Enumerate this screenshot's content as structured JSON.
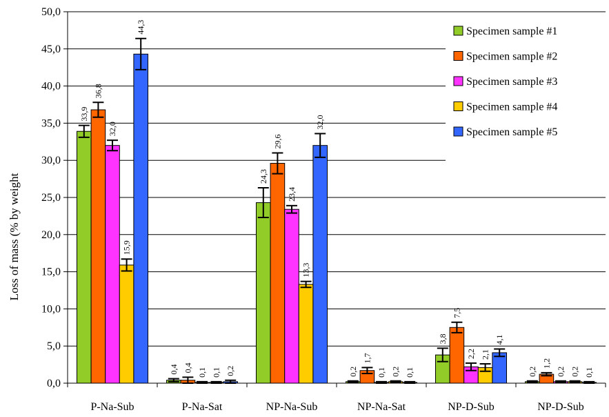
{
  "chart_data": {
    "type": "bar",
    "title": "",
    "xlabel": "",
    "ylabel": "Loss of mass (% by weight",
    "ylim": [
      0,
      50
    ],
    "ytick_step": 5,
    "ytick_labels": [
      "0,0",
      "5,0",
      "10,0",
      "15,0",
      "20,0",
      "25,0",
      "30,0",
      "35,0",
      "40,0",
      "45,0",
      "50,0"
    ],
    "grid": "horizontal",
    "legend_position": "top-right",
    "categories": [
      "P-Na-Sub",
      "P-Na-Sat",
      "NP-Na-Sub",
      "NP-Na-Sat",
      "NP-D-Sub",
      "NP-D-Sub"
    ],
    "series": [
      {
        "name": "Specimen sample #1",
        "color": "#92cc28",
        "values": [
          33.9,
          0.4,
          24.3,
          0.2,
          3.8,
          0.2
        ],
        "labels": [
          "33,9",
          "0,4",
          "24,3",
          "0,2",
          "3,8",
          "0,2"
        ],
        "errors": [
          0.8,
          0.2,
          2.0,
          0.1,
          0.9,
          0.1
        ]
      },
      {
        "name": "Specimen sample #2",
        "color": "#ff6600",
        "values": [
          36.8,
          0.4,
          29.6,
          1.7,
          7.5,
          1.2
        ],
        "labels": [
          "36,8",
          "0,4",
          "29,6",
          "1,7",
          "7,5",
          "1,2"
        ],
        "errors": [
          1.0,
          0.4,
          1.4,
          0.4,
          0.7,
          0.2
        ]
      },
      {
        "name": "Specimen sample #3",
        "color": "#ff33ff",
        "values": [
          32.0,
          0.1,
          23.4,
          0.1,
          2.2,
          0.2
        ],
        "labels": [
          "32,0",
          "0,1",
          "23,4",
          "0,1",
          "2,2",
          "0,2"
        ],
        "errors": [
          0.7,
          0.1,
          0.5,
          0.1,
          0.5,
          0.1
        ]
      },
      {
        "name": "Specimen sample #4",
        "color": "#ffcc00",
        "values": [
          15.9,
          0.1,
          13.3,
          0.2,
          2.1,
          0.2
        ],
        "labels": [
          "15,9",
          "0,1",
          "13,3",
          "0,2",
          "2,1",
          "0,2"
        ],
        "errors": [
          0.8,
          0.1,
          0.4,
          0.1,
          0.5,
          0.1
        ]
      },
      {
        "name": "Specimen sample #5",
        "color": "#3366ff",
        "values": [
          44.3,
          0.2,
          32.0,
          0.1,
          4.1,
          0.1
        ],
        "labels": [
          "44,3",
          "0,2",
          "32,0",
          "0,1",
          "4,1",
          "0,1"
        ],
        "errors": [
          2.1,
          0.2,
          1.6,
          0.1,
          0.5,
          0.1
        ]
      }
    ]
  }
}
